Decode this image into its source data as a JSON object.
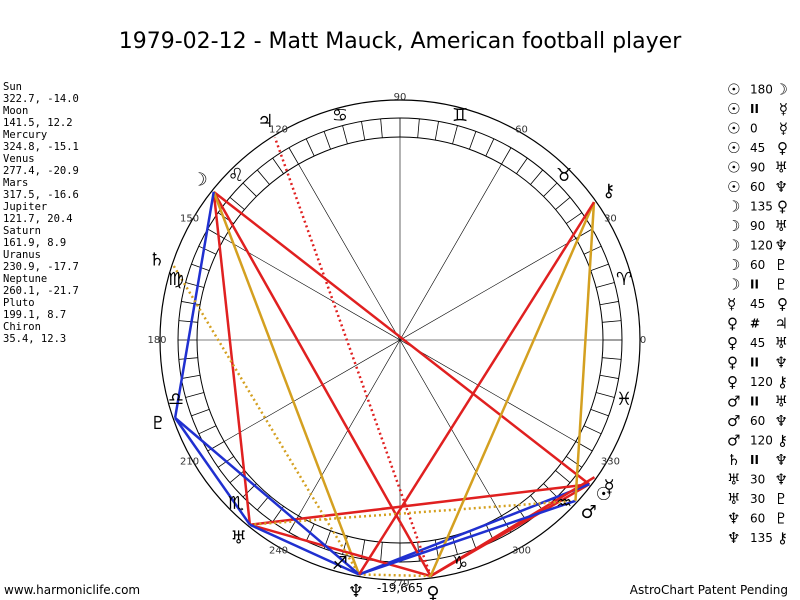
{
  "header": {
    "title": "1979-02-12 - Matt Mauck, American football player"
  },
  "planets": [
    {
      "name": "Sun",
      "glyph": "☉",
      "position": "322.7, -14.0"
    },
    {
      "name": "Moon",
      "glyph": "☽",
      "position": "141.5, 12.2"
    },
    {
      "name": "Mercury",
      "glyph": "☿",
      "position": "324.8, -15.1"
    },
    {
      "name": "Venus",
      "glyph": "♀",
      "position": "277.4, -20.9"
    },
    {
      "name": "Mars",
      "glyph": "♂",
      "position": "317.5, -16.6"
    },
    {
      "name": "Jupiter",
      "glyph": "♃",
      "position": "121.7, 20.4"
    },
    {
      "name": "Saturn",
      "glyph": "♄",
      "position": "161.9, 8.9"
    },
    {
      "name": "Uranus",
      "glyph": "♅",
      "position": "230.9, -17.7"
    },
    {
      "name": "Neptune",
      "glyph": "♆",
      "position": "260.1, -21.7"
    },
    {
      "name": "Pluto",
      "glyph": "♇",
      "position": "199.1, 8.7"
    },
    {
      "name": "Chiron",
      "glyph": "⚷",
      "position": "35.4, 12.3"
    }
  ],
  "zodiac": [
    "♈",
    "♉",
    "♊",
    "♋",
    "♌",
    "♍",
    "♎",
    "♏",
    "♐",
    "♑",
    "♒",
    "♓"
  ],
  "degree_labels": [
    0,
    30,
    60,
    90,
    120,
    150,
    180,
    210,
    240,
    270,
    300,
    330
  ],
  "aspects": [
    {
      "a": "☉",
      "label": "180",
      "b": "☽",
      "color": "#e02020"
    },
    {
      "a": "☉",
      "label": "II",
      "b": "☿"
    },
    {
      "a": "☉",
      "label": "0",
      "b": "☿"
    },
    {
      "a": "☉",
      "label": "45",
      "b": "♀",
      "color": "#e02020"
    },
    {
      "a": "☉",
      "label": "90",
      "b": "♅",
      "color": "#e02020"
    },
    {
      "a": "☉",
      "label": "60",
      "b": "♆",
      "color": "#2030d0"
    },
    {
      "a": "☽",
      "label": "135",
      "b": "♀",
      "color": "#e02020"
    },
    {
      "a": "☽",
      "label": "90",
      "b": "♅",
      "color": "#e02020"
    },
    {
      "a": "☽",
      "label": "120",
      "b": "♆",
      "color": "#d4a020"
    },
    {
      "a": "☽",
      "label": "60",
      "b": "♇",
      "color": "#2030d0"
    },
    {
      "a": "☽",
      "label": "II",
      "b": "♇"
    },
    {
      "a": "☿",
      "label": "45",
      "b": "♀",
      "color": "#e02020"
    },
    {
      "a": "♀",
      "label": "#",
      "b": "♃",
      "color": "#e02020",
      "dotted": true
    },
    {
      "a": "♀",
      "label": "45",
      "b": "♅",
      "color": "#e02020"
    },
    {
      "a": "♀",
      "label": "II",
      "b": "♆",
      "color": "#d4a020",
      "dotted": true
    },
    {
      "a": "♀",
      "label": "120",
      "b": "⚷",
      "color": "#d4a020"
    },
    {
      "a": "♂",
      "label": "II",
      "b": "♅",
      "color": "#d4a020",
      "dotted": true
    },
    {
      "a": "♂",
      "label": "60",
      "b": "♆",
      "color": "#2030d0"
    },
    {
      "a": "♂",
      "label": "120",
      "b": "⚷",
      "color": "#d4a020"
    },
    {
      "a": "♄",
      "label": "II",
      "b": "♆",
      "color": "#d4a020",
      "dotted": true
    },
    {
      "a": "♅",
      "label": "30",
      "b": "♆",
      "color": "#2030d0"
    },
    {
      "a": "♅",
      "label": "30",
      "b": "♇",
      "color": "#2030d0"
    },
    {
      "a": "♆",
      "label": "60",
      "b": "♇",
      "color": "#2030d0"
    },
    {
      "a": "♆",
      "label": "135",
      "b": "⚷",
      "color": "#e02020"
    }
  ],
  "bottom_label": "-19,665",
  "footer": {
    "left": "www.harmoniclife.com",
    "right": "AstroChart Patent Pending"
  }
}
